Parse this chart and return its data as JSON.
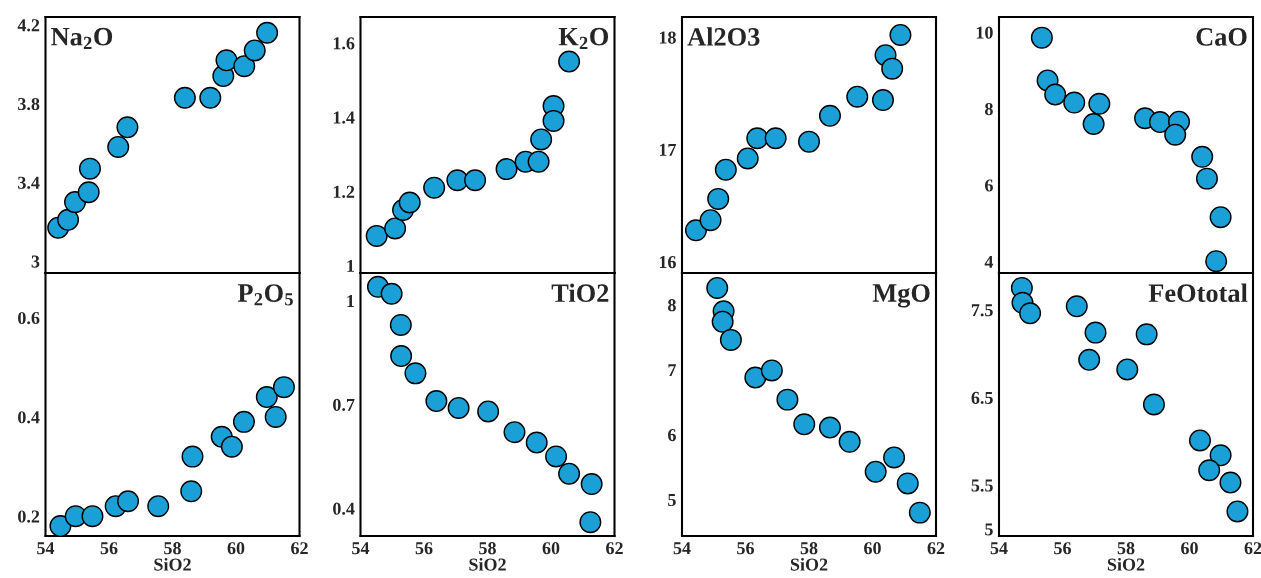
{
  "chart_data": [
    {
      "type": "scatter",
      "title": "Na$_{2}$O",
      "tick_labels": "y",
      "xlim": [
        54,
        62
      ],
      "xticks": [
        54,
        56,
        58,
        60,
        62
      ],
      "ylim": [
        2.94,
        4.24
      ],
      "yticks": [
        3,
        3.4,
        3.8,
        4.2
      ],
      "marker": "circle",
      "grid": false,
      "x": [
        54.4,
        54.71,
        54.93,
        55.36,
        55.4,
        56.29,
        56.58,
        58.39,
        59.19,
        59.6,
        59.7,
        60.26,
        60.59,
        60.98
      ],
      "series": [
        {
          "color": "#1a9fd6",
          "values": [
            3.17,
            3.21,
            3.3,
            3.35,
            3.47,
            3.58,
            3.68,
            3.83,
            3.83,
            3.94,
            4.02,
            3.99,
            4.07,
            4.16
          ]
        }
      ]
    },
    {
      "type": "scatter",
      "title": "K$_{2}$O",
      "tick_labels": "y",
      "xlim": [
        54,
        62
      ],
      "xticks": [
        54,
        56,
        58,
        60,
        62
      ],
      "ylim": [
        0.98,
        1.67
      ],
      "yticks": [
        1,
        1.2,
        1.4,
        1.6
      ],
      "marker": "circle",
      "grid": false,
      "x": [
        54.51,
        55.09,
        55.34,
        55.55,
        56.32,
        57.05,
        57.61,
        58.6,
        59.2,
        59.61,
        59.69,
        60.08,
        60.08,
        60.57
      ],
      "series": [
        {
          "color": "#1a9fd6",
          "values": [
            1.08,
            1.1,
            1.15,
            1.17,
            1.21,
            1.23,
            1.23,
            1.26,
            1.28,
            1.28,
            1.34,
            1.43,
            1.39,
            1.55
          ]
        }
      ]
    },
    {
      "type": "scatter",
      "title": "Al2O3",
      "tick_labels": "y",
      "xlim": [
        54,
        62
      ],
      "xticks": [
        54,
        56,
        58,
        60,
        62
      ],
      "ylim": [
        15.9,
        18.18
      ],
      "yticks": [
        16,
        17,
        18
      ],
      "marker": "circle",
      "grid": false,
      "x": [
        54.44,
        54.9,
        55.14,
        55.38,
        56.07,
        56.37,
        56.95,
        58.0,
        58.66,
        59.52,
        60.33,
        60.41,
        60.62,
        60.88
      ],
      "series": [
        {
          "color": "#1a9fd6",
          "values": [
            16.28,
            16.37,
            16.56,
            16.82,
            16.92,
            17.1,
            17.1,
            17.07,
            17.3,
            17.47,
            17.44,
            17.84,
            17.72,
            18.02
          ]
        }
      ]
    },
    {
      "type": "scatter",
      "title": "CaO",
      "tick_labels": "y",
      "xlim": [
        54,
        62
      ],
      "xticks": [
        54,
        56,
        58,
        60,
        62
      ],
      "ylim": [
        3.7,
        10.4
      ],
      "yticks": [
        4,
        6,
        8,
        10
      ],
      "marker": "circle",
      "grid": false,
      "x": [
        55.35,
        55.53,
        55.77,
        56.37,
        56.98,
        57.16,
        58.6,
        59.07,
        59.67,
        59.55,
        60.4,
        60.55,
        60.98,
        60.84
      ],
      "series": [
        {
          "color": "#1a9fd6",
          "values": [
            9.86,
            8.74,
            8.37,
            8.16,
            7.6,
            8.13,
            7.75,
            7.65,
            7.66,
            7.32,
            6.74,
            6.17,
            5.16,
            4.01
          ]
        }
      ]
    },
    {
      "type": "scatter",
      "title": "P$_{2}$O$_{5}$",
      "xlabel": "SiO2",
      "xlim": [
        54,
        62
      ],
      "xticks": [
        54,
        56,
        58,
        60,
        62
      ],
      "ylim": [
        0.16,
        0.69
      ],
      "yticks": [
        0.2,
        0.4,
        0.6
      ],
      "marker": "circle",
      "grid": false,
      "x": [
        54.47,
        54.95,
        55.48,
        56.21,
        56.6,
        57.55,
        58.59,
        58.63,
        59.55,
        59.87,
        60.25,
        60.97,
        61.25,
        61.51
      ],
      "series": [
        {
          "color": "#1a9fd6",
          "values": [
            0.18,
            0.2,
            0.2,
            0.22,
            0.23,
            0.22,
            0.25,
            0.32,
            0.36,
            0.34,
            0.39,
            0.44,
            0.4,
            0.46
          ]
        }
      ]
    },
    {
      "type": "scatter",
      "title": "TiO2",
      "xlabel": "SiO2",
      "xlim": [
        54,
        62
      ],
      "xticks": [
        54,
        56,
        58,
        60,
        62
      ],
      "ylim": [
        0.32,
        1.08
      ],
      "yticks": [
        0.4,
        0.7,
        1
      ],
      "marker": "circle",
      "grid": false,
      "x": [
        54.55,
        54.98,
        55.27,
        55.28,
        55.73,
        56.39,
        57.09,
        58.02,
        58.85,
        59.55,
        60.16,
        60.57,
        61.28,
        61.24
      ],
      "series": [
        {
          "color": "#1a9fd6",
          "values": [
            1.04,
            1.02,
            0.93,
            0.84,
            0.79,
            0.71,
            0.69,
            0.68,
            0.62,
            0.59,
            0.55,
            0.5,
            0.47,
            0.36
          ]
        }
      ]
    },
    {
      "type": "scatter",
      "title": "MgO",
      "xlabel": "SiO2",
      "xlim": [
        54,
        62
      ],
      "xticks": [
        54,
        56,
        58,
        60,
        62
      ],
      "ylim": [
        4.44,
        8.49
      ],
      "yticks": [
        5,
        6,
        7,
        8
      ],
      "marker": "circle",
      "grid": false,
      "x": [
        55.11,
        55.31,
        55.28,
        55.54,
        56.31,
        56.83,
        57.32,
        57.85,
        58.66,
        59.28,
        60.1,
        60.68,
        61.11,
        61.49
      ],
      "series": [
        {
          "color": "#1a9fd6",
          "values": [
            8.26,
            7.9,
            7.74,
            7.46,
            6.88,
            6.99,
            6.54,
            6.16,
            6.11,
            5.89,
            5.43,
            5.65,
            5.25,
            4.8
          ]
        }
      ]
    },
    {
      "type": "scatter",
      "title": "FeOtotal",
      "xlabel": "SiO2",
      "xlim": [
        54,
        62
      ],
      "xticks": [
        54,
        56,
        58,
        60,
        62
      ],
      "ylim": [
        4.92,
        7.92
      ],
      "yticks": [
        5,
        5.5,
        6.5,
        7.5
      ],
      "marker": "circle",
      "grid": false,
      "x": [
        54.72,
        54.74,
        54.98,
        56.45,
        57.04,
        56.84,
        58.65,
        58.04,
        58.88,
        60.33,
        60.98,
        60.62,
        61.29,
        61.51
      ],
      "series": [
        {
          "color": "#1a9fd6",
          "values": [
            7.75,
            7.58,
            7.46,
            7.54,
            7.24,
            6.93,
            7.22,
            6.82,
            6.42,
            6.01,
            5.84,
            5.67,
            5.53,
            5.2
          ]
        }
      ]
    }
  ]
}
